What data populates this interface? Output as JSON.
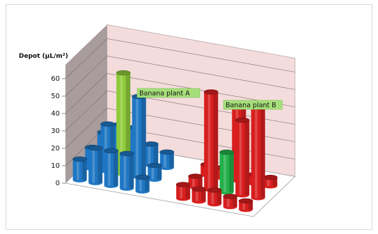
{
  "chart_data": {
    "type": "bar",
    "style": "3d-cylinder",
    "ylabel": "Depot (µL/m²)",
    "ylim": [
      0,
      60
    ],
    "yticks": [
      0,
      10,
      20,
      30,
      40,
      50,
      60
    ],
    "grid": true,
    "annotations": [
      "Banana plant  A",
      "Banana plant B"
    ],
    "colors": {
      "blue": "#1f77c4",
      "lightgreen": "#8ecb3a",
      "green": "#22b04a",
      "red": "#d81e1e"
    },
    "groups": [
      {
        "annotation": "Banana plant  A",
        "color_main": "blue",
        "color_plant": "lightgreen",
        "columns": [
          {
            "bars": [
              {
                "value": 12,
                "color": "blue"
              },
              {
                "value": 12,
                "color": "blue"
              },
              {
                "value": 14,
                "color": "blue"
              }
            ]
          },
          {
            "bars": [
              {
                "value": 20,
                "color": "blue"
              },
              {
                "value": 27,
                "color": "blue"
              },
              {
                "value": 20,
                "color": "blue"
              }
            ]
          },
          {
            "bars": [
              {
                "value": 20,
                "color": "blue"
              },
              {
                "value": 58,
                "color": "lightgreen"
              },
              {
                "value": 20,
                "color": "blue"
              }
            ]
          },
          {
            "bars": [
              {
                "value": 20,
                "color": "blue"
              },
              {
                "value": 46,
                "color": "blue"
              },
              {
                "value": 12,
                "color": "blue"
              }
            ]
          },
          {
            "bars": [
              {
                "value": 8,
                "color": "blue"
              },
              {
                "value": 8,
                "color": "blue"
              },
              {
                "value": 9,
                "color": "blue"
              }
            ]
          }
        ]
      },
      {
        "annotation": "Banana plant B",
        "color_main": "red",
        "color_plant": "green",
        "columns": [
          {
            "bars": [
              {
                "value": 8,
                "color": "red"
              },
              {
                "value": 6,
                "color": "red"
              },
              {
                "value": 6,
                "color": "red"
              }
            ]
          },
          {
            "bars": [
              {
                "value": 7,
                "color": "red"
              },
              {
                "value": 56,
                "color": "red"
              },
              {
                "value": 6,
                "color": "red"
              }
            ]
          },
          {
            "bars": [
              {
                "value": 8,
                "color": "red"
              },
              {
                "value": 23,
                "color": "green"
              },
              {
                "value": 44,
                "color": "red"
              }
            ]
          },
          {
            "bars": [
              {
                "value": 6,
                "color": "red"
              },
              {
                "value": 43,
                "color": "red"
              },
              {
                "value": 5,
                "color": "red"
              }
            ]
          },
          {
            "bars": [
              {
                "value": 5,
                "color": "red"
              },
              {
                "value": 52,
                "color": "red"
              },
              {
                "value": 5,
                "color": "red"
              }
            ]
          }
        ]
      }
    ]
  }
}
